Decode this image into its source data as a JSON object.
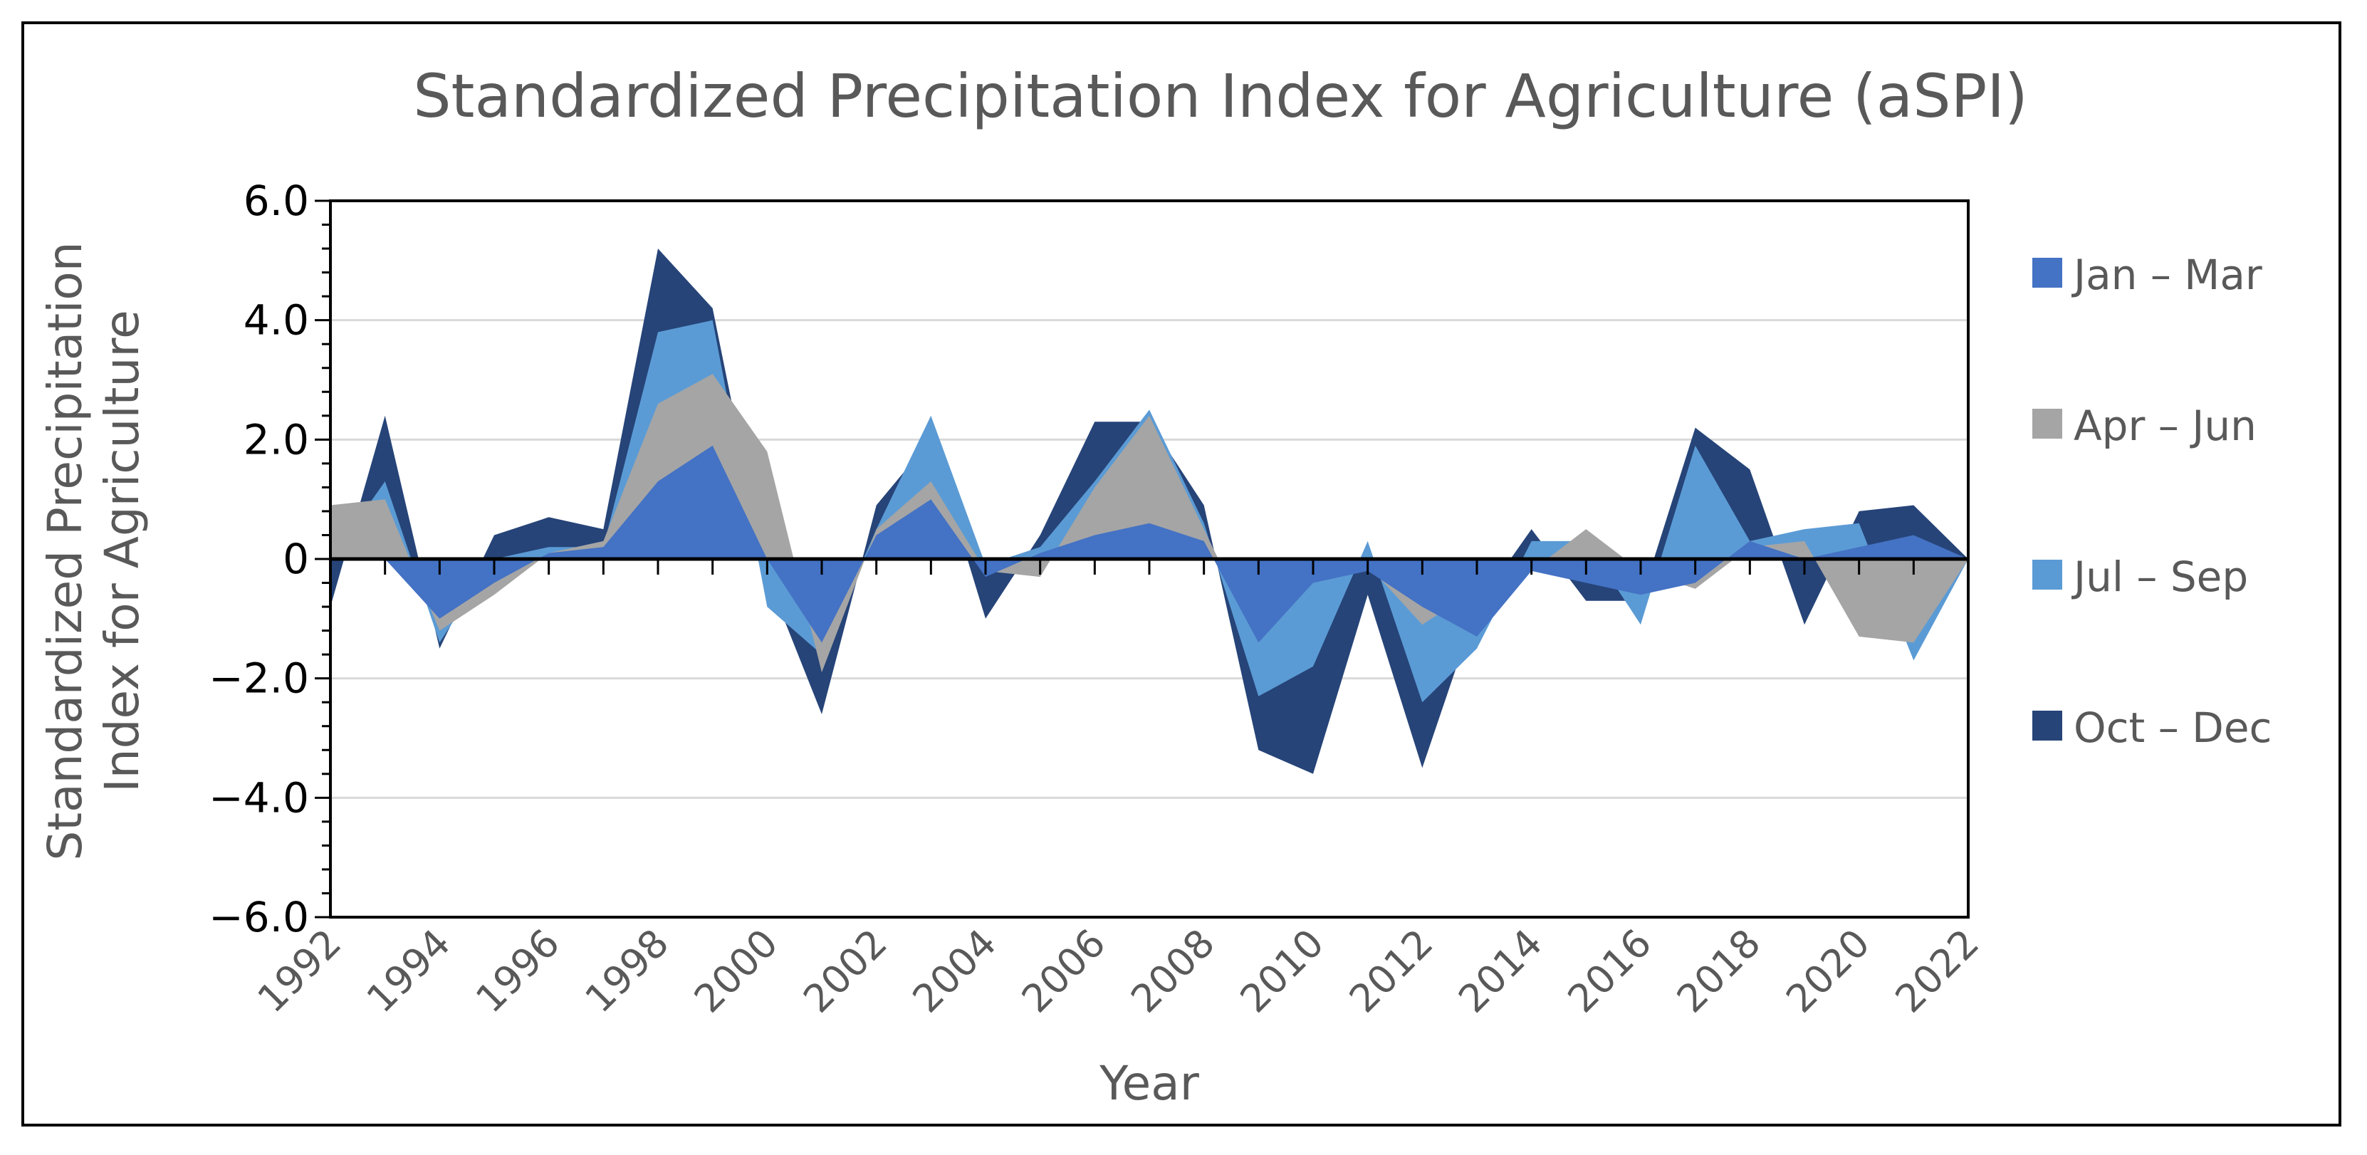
{
  "chart_data": {
    "type": "area",
    "title": "Standardized Precipitation Index for Agriculture (aSPI)",
    "xlabel": "Year",
    "ylabel": [
      "Standardized Precipitation",
      "Index for Agriculture"
    ],
    "ylim": [
      -6,
      6
    ],
    "yticks": [
      6,
      4,
      2,
      0,
      -2,
      -4,
      -6
    ],
    "ytick_labels": [
      "6.0",
      "4.0",
      "2.0",
      "0",
      "−2.0",
      "−4.0",
      "−6.0"
    ],
    "xlim": [
      1992,
      2022
    ],
    "xtick_labels": [
      "1992",
      "1994",
      "1996",
      "1998",
      "2000",
      "2002",
      "2004",
      "2006",
      "2008",
      "2010",
      "2012",
      "2014",
      "2016",
      "2018",
      "2020",
      "2022"
    ],
    "grid": true,
    "legend_position": "right",
    "x": [
      1992,
      1993,
      1994,
      1995,
      1996,
      1997,
      1998,
      1999,
      2000,
      2001,
      2002,
      2003,
      2004,
      2005,
      2006,
      2007,
      2008,
      2009,
      2010,
      2011,
      2012,
      2013,
      2014,
      2015,
      2016,
      2017,
      2018,
      2019,
      2020,
      2021,
      2022
    ],
    "series": [
      {
        "name": "Oct – Dec",
        "color": "#264478",
        "values": [
          -0.8,
          2.4,
          -1.5,
          0.4,
          0.7,
          0.5,
          5.2,
          4.2,
          -0.3,
          -2.6,
          0.9,
          2.0,
          -1.0,
          0.4,
          2.3,
          2.3,
          0.9,
          -3.2,
          -3.6,
          -0.6,
          -3.5,
          -0.8,
          0.5,
          -0.7,
          -0.7,
          2.2,
          1.5,
          -1.1,
          0.8,
          0.9,
          0.0
        ]
      },
      {
        "name": "Jul – Sep",
        "color": "#5B9BD5",
        "values": [
          0.0,
          1.3,
          -1.4,
          0.0,
          0.2,
          0.2,
          3.8,
          4.0,
          -0.8,
          -1.6,
          0.5,
          2.4,
          -0.1,
          0.2,
          1.3,
          2.5,
          0.6,
          -2.3,
          -1.8,
          0.3,
          -2.4,
          -1.5,
          0.3,
          0.3,
          -1.1,
          1.9,
          0.3,
          0.5,
          0.6,
          -1.7,
          0.0
        ]
      },
      {
        "name": "Apr – Jun",
        "color": "#A5A5A5",
        "values": [
          0.9,
          1.0,
          -1.2,
          -0.6,
          0.1,
          0.3,
          2.6,
          3.1,
          1.8,
          -1.9,
          0.5,
          1.3,
          -0.2,
          -0.3,
          1.2,
          2.4,
          0.5,
          -1.4,
          -0.3,
          -0.1,
          -1.1,
          -0.5,
          -0.2,
          0.5,
          -0.2,
          -0.5,
          0.2,
          0.3,
          -1.3,
          -1.4,
          0.0
        ]
      },
      {
        "name": "Jan – Mar",
        "color": "#4472C4",
        "values": [
          0.0,
          0.0,
          -1.0,
          -0.4,
          0.1,
          0.2,
          1.3,
          1.9,
          0.0,
          -1.4,
          0.4,
          1.0,
          -0.3,
          0.1,
          0.4,
          0.6,
          0.3,
          -1.4,
          -0.4,
          -0.2,
          -0.8,
          -1.3,
          -0.2,
          -0.4,
          -0.6,
          -0.4,
          0.3,
          0.0,
          0.2,
          0.4,
          0.0
        ]
      }
    ],
    "legend": [
      {
        "name": "Jan – Mar",
        "color": "#4472C4"
      },
      {
        "name": "Apr – Jun",
        "color": "#A5A5A5"
      },
      {
        "name": "Jul – Sep",
        "color": "#5B9BD5"
      },
      {
        "name": "Oct – Dec",
        "color": "#264478"
      }
    ]
  }
}
